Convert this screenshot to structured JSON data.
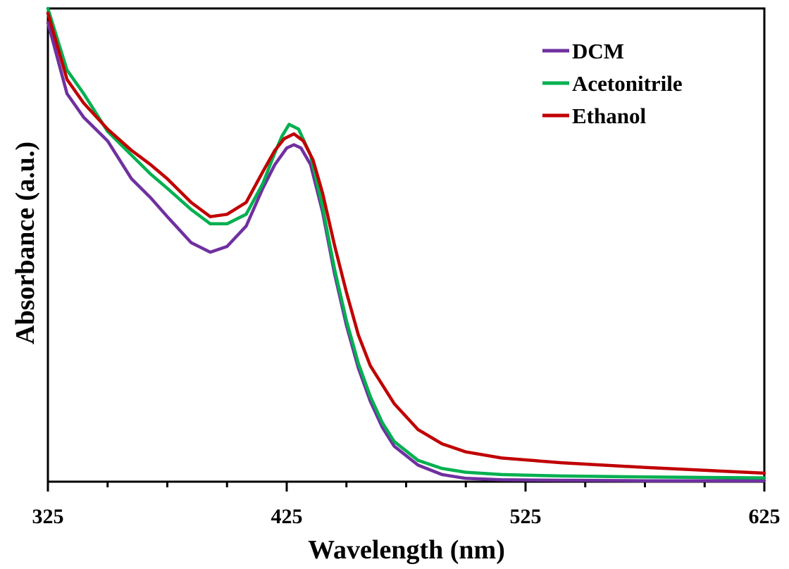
{
  "chart_data": {
    "type": "line",
    "xlabel": "Wavelength (nm)",
    "ylabel": "Absorbance (a.u.)",
    "xlim": [
      325,
      625
    ],
    "ylim": [
      0,
      1
    ],
    "xticks": [
      "325",
      "425",
      "525",
      "625"
    ],
    "grid": false,
    "legend_position": "top-right",
    "series": [
      {
        "name": "DCM",
        "color": "#7030a0",
        "x": [
          325,
          333,
          340,
          350,
          360,
          368,
          375,
          385,
          393,
          400,
          408,
          415,
          420,
          425,
          428,
          431,
          435,
          440,
          445,
          450,
          455,
          460,
          465,
          470,
          480,
          490,
          500,
          515,
          540,
          575,
          625
        ],
        "y": [
          0.97,
          0.82,
          0.77,
          0.72,
          0.64,
          0.6,
          0.56,
          0.505,
          0.485,
          0.497,
          0.54,
          0.62,
          0.67,
          0.705,
          0.712,
          0.705,
          0.67,
          0.57,
          0.44,
          0.33,
          0.24,
          0.17,
          0.115,
          0.075,
          0.035,
          0.015,
          0.007,
          0.004,
          0.003,
          0.002,
          0.002
        ]
      },
      {
        "name": "Acetonitrile",
        "color": "#00b050",
        "x": [
          325,
          333,
          340,
          350,
          360,
          368,
          375,
          385,
          393,
          400,
          408,
          415,
          420,
          423,
          426,
          430,
          435,
          440,
          445,
          450,
          455,
          460,
          465,
          470,
          480,
          490,
          500,
          515,
          540,
          575,
          625
        ],
        "y": [
          1.0,
          0.87,
          0.82,
          0.74,
          0.69,
          0.65,
          0.62,
          0.575,
          0.545,
          0.545,
          0.565,
          0.63,
          0.695,
          0.73,
          0.755,
          0.745,
          0.69,
          0.58,
          0.45,
          0.34,
          0.25,
          0.18,
          0.125,
          0.085,
          0.045,
          0.028,
          0.02,
          0.015,
          0.012,
          0.01,
          0.008
        ]
      },
      {
        "name": "Ethanol",
        "color": "#c00000",
        "x": [
          325,
          333,
          340,
          350,
          360,
          368,
          375,
          385,
          393,
          400,
          408,
          415,
          420,
          424,
          428,
          432,
          436,
          440,
          445,
          450,
          455,
          460,
          470,
          480,
          490,
          500,
          515,
          540,
          575,
          625
        ],
        "y": [
          0.99,
          0.85,
          0.8,
          0.745,
          0.7,
          0.67,
          0.64,
          0.59,
          0.56,
          0.565,
          0.59,
          0.655,
          0.7,
          0.725,
          0.735,
          0.72,
          0.68,
          0.61,
          0.5,
          0.4,
          0.31,
          0.245,
          0.165,
          0.11,
          0.08,
          0.063,
          0.05,
          0.04,
          0.03,
          0.018
        ]
      }
    ]
  }
}
